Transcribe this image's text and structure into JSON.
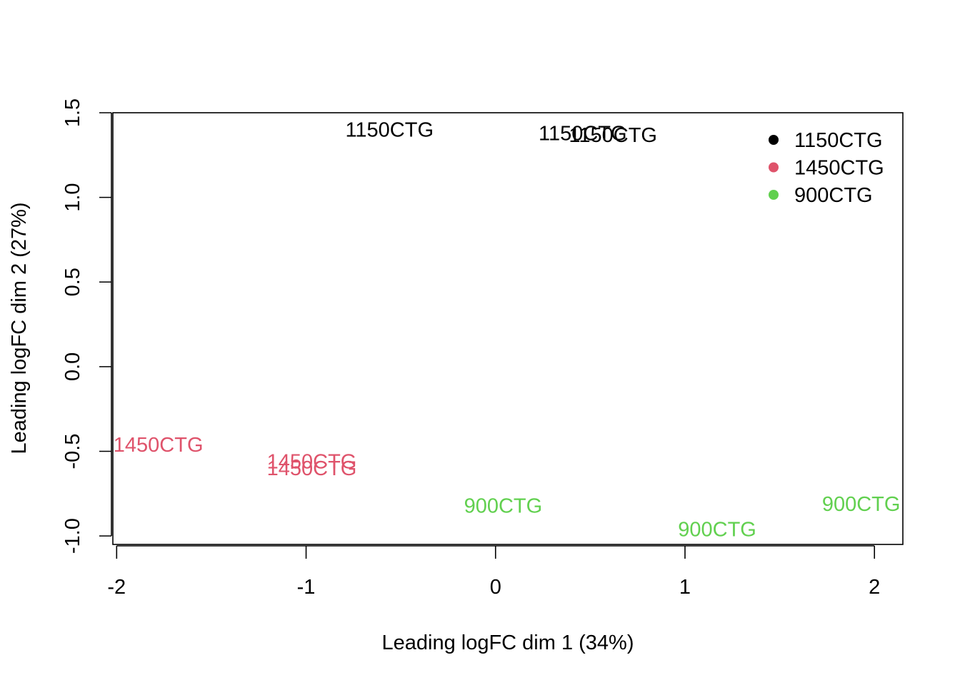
{
  "chart_data": {
    "type": "scatter",
    "title": "",
    "xlabel": "Leading logFC dim 1 (34%)",
    "ylabel": "Leading logFC dim 2 (27%)",
    "xlim": [
      -2.02,
      2.15
    ],
    "ylim": [
      -1.05,
      1.5
    ],
    "x_ticks": [
      -2,
      -1,
      0,
      1,
      2
    ],
    "x_tick_labels": [
      "-2",
      "-1",
      "0",
      "1",
      "2"
    ],
    "y_ticks": [
      -1.0,
      -0.5,
      0.0,
      0.5,
      1.0,
      1.5
    ],
    "y_tick_labels": [
      "-1.0",
      "-0.5",
      "0.0",
      "0.5",
      "1.0",
      "1.5"
    ],
    "grid": false,
    "legend_position": "top-right",
    "groups": [
      {
        "name": "1150CTG",
        "color": "#000000"
      },
      {
        "name": "1450CTG",
        "color": "#DF536B"
      },
      {
        "name": "900CTG",
        "color": "#61D04F"
      }
    ],
    "points": [
      {
        "label": "1150CTG",
        "group": "1150CTG",
        "x": -0.56,
        "y": 1.4
      },
      {
        "label": "1150CTG",
        "group": "1150CTG",
        "x": 0.46,
        "y": 1.38
      },
      {
        "label": "1150CTG",
        "group": "1150CTG",
        "x": 0.62,
        "y": 1.37
      },
      {
        "label": "1450CTG",
        "group": "1450CTG",
        "x": -1.78,
        "y": -0.46
      },
      {
        "label": "1450CTG",
        "group": "1450CTG",
        "x": -0.97,
        "y": -0.56
      },
      {
        "label": "1450CTG",
        "group": "1450CTG",
        "x": -0.97,
        "y": -0.6
      },
      {
        "label": "900CTG",
        "group": "900CTG",
        "x": 0.04,
        "y": -0.82
      },
      {
        "label": "900CTG",
        "group": "900CTG",
        "x": 1.17,
        "y": -0.96
      },
      {
        "label": "900CTG",
        "group": "900CTG",
        "x": 1.93,
        "y": -0.81
      }
    ]
  }
}
